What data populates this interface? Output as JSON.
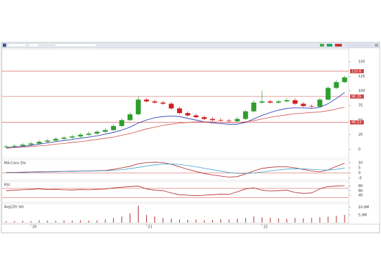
{
  "chart_data": [
    {
      "type": "candlestick",
      "open": [
        4,
        5,
        6,
        8,
        10,
        13,
        15,
        18,
        20,
        22,
        25,
        27,
        30,
        33,
        40,
        50,
        60,
        85,
        82,
        80,
        78,
        70,
        62,
        58,
        55,
        52,
        50,
        49,
        48,
        52,
        65,
        80,
        82,
        80,
        82,
        84,
        78,
        74,
        73,
        85,
        105,
        115
      ],
      "high": [
        8,
        9,
        11,
        13,
        16,
        18,
        21,
        23,
        25,
        28,
        30,
        33,
        36,
        43,
        53,
        63,
        90,
        88,
        85,
        83,
        81,
        73,
        65,
        61,
        58,
        55,
        53,
        52,
        55,
        68,
        84,
        100,
        85,
        85,
        87,
        87,
        81,
        77,
        88,
        108,
        118,
        126
      ],
      "low": [
        2,
        3,
        4,
        6,
        8,
        11,
        13,
        16,
        18,
        20,
        23,
        25,
        28,
        31,
        38,
        48,
        58,
        80,
        78,
        76,
        68,
        60,
        56,
        53,
        50,
        48,
        47,
        46,
        46,
        50,
        63,
        78,
        78,
        78,
        80,
        76,
        72,
        71,
        71,
        83,
        103,
        113
      ],
      "close": [
        5,
        6,
        8,
        10,
        13,
        15,
        18,
        20,
        22,
        25,
        27,
        30,
        33,
        40,
        50,
        60,
        85,
        82,
        80,
        78,
        70,
        62,
        58,
        55,
        52,
        50,
        49,
        48,
        52,
        65,
        80,
        82,
        80,
        82,
        84,
        78,
        74,
        73,
        85,
        105,
        115,
        123
      ],
      "up_color": "#2e9e2e",
      "down_color": "#d02020",
      "series": [
        {
          "color": "#1a2ea8",
          "values": [
            3,
            4,
            5,
            7,
            9,
            11,
            13,
            15,
            17,
            19,
            21,
            23,
            26,
            29,
            33,
            38,
            45,
            50,
            54,
            56,
            57,
            56,
            53,
            50,
            47,
            45,
            44,
            43,
            43,
            46,
            52,
            58,
            63,
            67,
            70,
            71,
            71,
            70,
            72,
            78,
            87,
            97
          ]
        },
        {
          "color": "#d04a4a",
          "values": [
            2,
            3,
            4,
            5,
            6,
            7,
            9,
            10,
            12,
            13,
            15,
            17,
            19,
            21,
            24,
            27,
            31,
            35,
            38,
            41,
            43,
            45,
            46,
            47,
            47,
            47,
            46,
            46,
            46,
            47,
            49,
            52,
            55,
            57,
            59,
            61,
            62,
            63,
            64,
            66,
            69,
            72
          ]
        }
      ],
      "levels": [
        {
          "value": 133.6,
          "label": "133.6"
        },
        {
          "value": 90.35,
          "label": "90.35"
        },
        {
          "value": 46.13,
          "label": "46.13"
        }
      ],
      "level_color": "#d04040",
      "ylim": [
        -14,
        171
      ],
      "yticks": [
        0,
        25,
        50,
        75,
        100,
        125,
        150
      ]
    },
    {
      "type": "line",
      "title": "MA-Conv Div",
      "series": [
        {
          "color": "#b02020",
          "values": [
            0.5,
            0.6,
            0.8,
            1,
            1.2,
            1.3,
            1.5,
            1.6,
            1.7,
            1.9,
            2,
            2.2,
            2.5,
            3.5,
            5,
            6.5,
            9,
            10,
            10.5,
            10,
            8.5,
            6,
            3.5,
            1.5,
            -0.5,
            -2,
            -3,
            -4,
            -3.5,
            -1,
            2,
            4.5,
            5.5,
            6,
            6,
            5,
            3.5,
            2,
            1,
            3,
            6.5,
            9.5
          ]
        },
        {
          "color": "#3aa0d0",
          "values": [
            0.3,
            0.4,
            0.5,
            0.7,
            0.9,
            1,
            1.2,
            1.4,
            1.5,
            1.7,
            1.8,
            2,
            2.2,
            2.6,
            3.3,
            4.2,
            5.5,
            6.8,
            7.9,
            8.6,
            8.8,
            8.3,
            7.3,
            6,
            4.6,
            3.2,
            1.8,
            0.5,
            -0.4,
            -0.6,
            0,
            1,
            2,
            3,
            3.8,
            4.1,
            4,
            3.6,
            3,
            2.9,
            3.6,
            4.8
          ]
        }
      ],
      "hlines": [
        0
      ],
      "level_color": "#d04040",
      "ylim": [
        -7,
        13
      ],
      "yticks": [
        -5,
        0,
        5,
        10
      ]
    },
    {
      "type": "line",
      "title": "RSI",
      "series": [
        {
          "color": "#b02020",
          "values": [
            60,
            62,
            64,
            66,
            68,
            65,
            66,
            64,
            63,
            65,
            64,
            66,
            67,
            72,
            75,
            78,
            80,
            68,
            62,
            60,
            50,
            42,
            40,
            38,
            40,
            42,
            45,
            44,
            55,
            68,
            72,
            62,
            58,
            60,
            62,
            52,
            48,
            50,
            68,
            78,
            80,
            82
          ]
        }
      ],
      "hlines": [
        70,
        30
      ],
      "level_color": "#d04040",
      "ylim": [
        10,
        100
      ],
      "yticks": [
        40,
        60,
        80
      ]
    },
    {
      "type": "bar",
      "title": "Avg(20) Vol",
      "color": "#b03030",
      "categories": [
        null,
        null,
        null,
        "20",
        null,
        null,
        null,
        null,
        null,
        null,
        null,
        null,
        null,
        null,
        null,
        null,
        null,
        "21",
        null,
        null,
        null,
        null,
        null,
        null,
        null,
        null,
        null,
        null,
        null,
        null,
        null,
        "22",
        null,
        null,
        null,
        null,
        null,
        null,
        null,
        null,
        null,
        null
      ],
      "values": [
        1,
        1,
        1.2,
        1,
        1.5,
        1.3,
        1.2,
        1.5,
        1.4,
        1.6,
        1.3,
        1.5,
        2,
        3,
        4,
        6,
        11,
        5,
        4,
        3,
        2.5,
        2,
        1.8,
        2,
        1.5,
        1.8,
        2.2,
        2,
        2.5,
        3,
        4,
        3.5,
        3,
        2.8,
        2.5,
        3,
        2.8,
        3,
        3.5,
        4,
        4.5,
        5
      ],
      "ylim": [
        0,
        12.5
      ],
      "yticks": [
        {
          "value": 5,
          "label": "5.0M"
        },
        {
          "value": 10,
          "label": "10.0M"
        }
      ]
    }
  ]
}
